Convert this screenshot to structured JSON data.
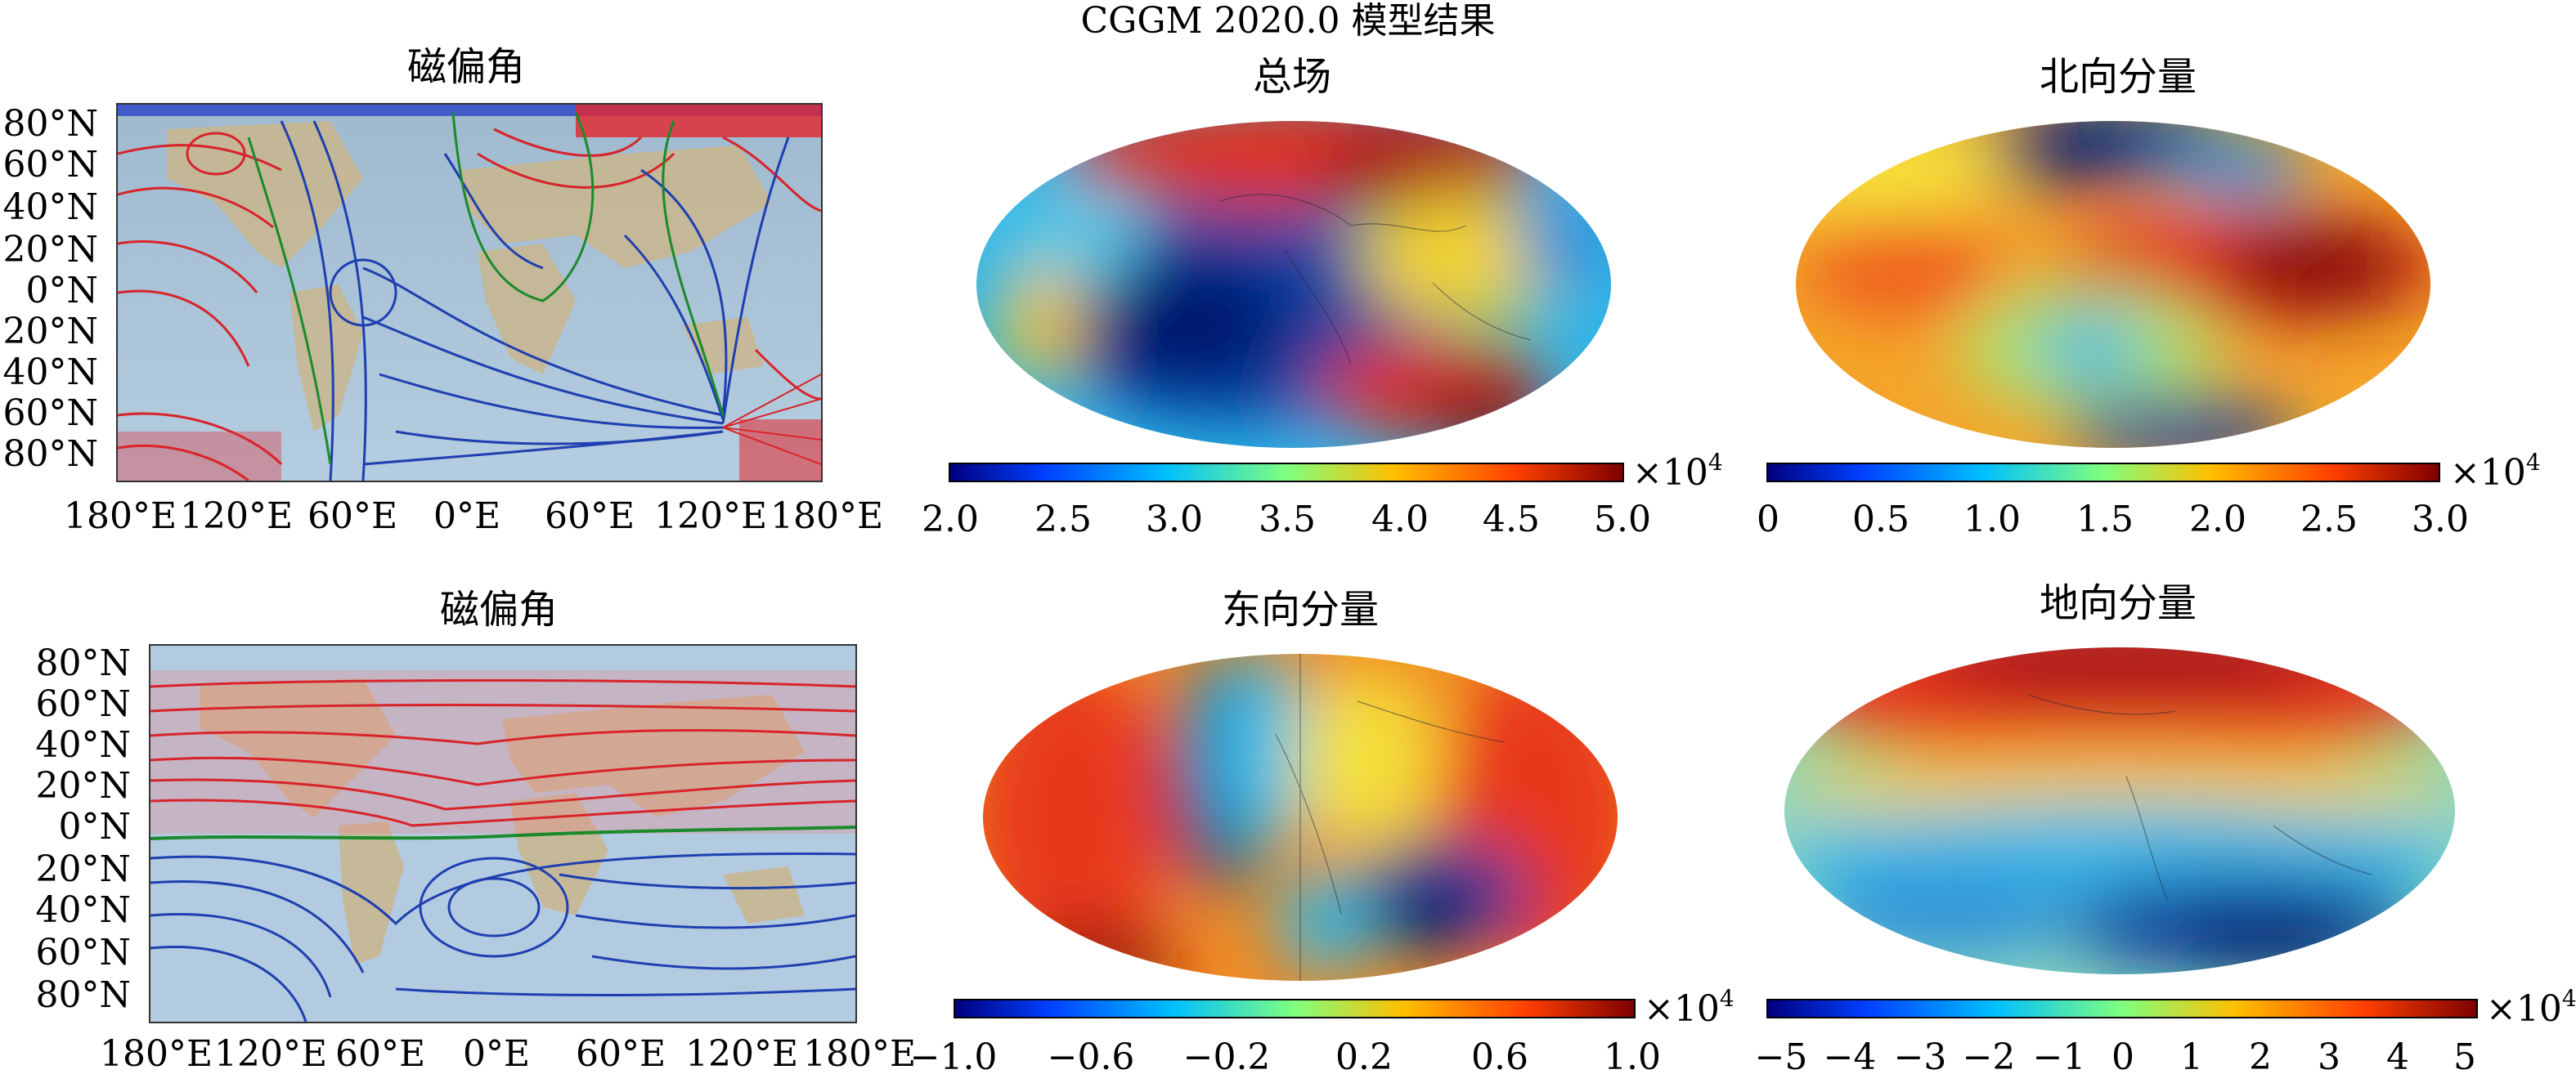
{
  "figure_title": "CGGM 2020.0 模型结果",
  "panels": {
    "decl_top": {
      "title": "磁偏角",
      "lat_labels": [
        "80°N",
        "60°N",
        "40°N",
        "20°N",
        "0°N",
        "20°N",
        "40°N",
        "60°N",
        "80°N"
      ],
      "lon_labels": [
        "180°E",
        "120°E",
        "60°E",
        "0°E",
        "60°E",
        "120°E",
        "180°E"
      ]
    },
    "decl_bottom": {
      "title": "磁偏角",
      "lat_labels": [
        "80°N",
        "60°N",
        "40°N",
        "20°N",
        "0°N",
        "20°N",
        "40°N",
        "60°N",
        "80°N"
      ],
      "lon_labels": [
        "180°E",
        "120°E",
        "60°E",
        "0°E",
        "60°E",
        "120°E",
        "180°E"
      ]
    },
    "total": {
      "title": "总场",
      "multiplier": "×10",
      "multiplier_exp": "4",
      "colorbar_ticks": [
        "2.0",
        "2.5",
        "3.0",
        "3.5",
        "4.0",
        "4.5",
        "5.0"
      ]
    },
    "north": {
      "title": "北向分量",
      "multiplier": "×10",
      "multiplier_exp": "4",
      "colorbar_ticks": [
        "0",
        "0.5",
        "1.0",
        "1.5",
        "2.0",
        "2.5",
        "3.0"
      ]
    },
    "east": {
      "title": "东向分量",
      "multiplier": "×10",
      "multiplier_exp": "4",
      "colorbar_ticks": [
        "−1.0",
        "−0.6",
        "−0.2",
        "0.2",
        "0.6",
        "1.0"
      ]
    },
    "down": {
      "title": "地向分量",
      "multiplier": "×10",
      "multiplier_exp": "4",
      "colorbar_ticks": [
        "−5",
        "−4",
        "−3",
        "−2",
        "−1",
        "0",
        "1",
        "2",
        "3",
        "4",
        "5"
      ]
    }
  },
  "colors": {
    "jet": [
      "#00007f",
      "#0040ff",
      "#00bfff",
      "#7fff7f",
      "#ffbf00",
      "#ff4000",
      "#7f0000"
    ],
    "contour_pos": "#d8232a",
    "contour_neg": "#1f3fb0",
    "contour_zero": "#1a8a2a",
    "ocean": "#a9c6dc",
    "land": "#c8b48a"
  }
}
